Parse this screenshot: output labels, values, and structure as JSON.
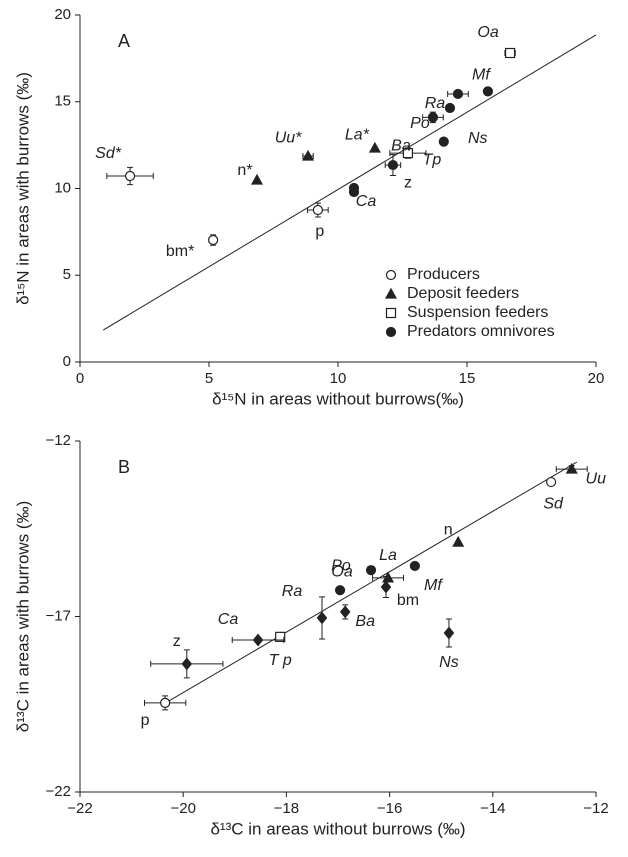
{
  "chart_data": [
    {
      "type": "scatter",
      "panel": "A",
      "xlabel": "δ¹⁵N in areas without burrows(‰)",
      "ylabel": "δ¹⁵N in areas with burrows (‰)",
      "xlim": [
        0,
        20
      ],
      "ylim": [
        0,
        20
      ],
      "xticks": [
        0,
        5,
        10,
        15,
        20
      ],
      "yticks": [
        0,
        5,
        10,
        15,
        20
      ],
      "legend": "lower right",
      "fit_line": {
        "x": [
          0.9,
          20
        ],
        "y": [
          1.84,
          18.85
        ]
      },
      "series": [
        {
          "name": "Producers",
          "marker": "open-circle",
          "labels": [
            "Sd*",
            "bm*",
            "p"
          ],
          "x": [
            1.94,
            5.16,
            9.22
          ],
          "values": [
            10.72,
            7.03,
            8.76
          ],
          "xerr": [
            0.9,
            0.15,
            0.4
          ],
          "yerr": [
            0.5,
            0.3,
            0.4
          ]
        },
        {
          "name": "Deposit feeders",
          "marker": "triangle",
          "labels": [
            "n*",
            "Uu*",
            "La*"
          ],
          "x": [
            6.86,
            8.84,
            11.43
          ],
          "values": [
            10.49,
            11.87,
            12.33
          ],
          "xerr": [
            null,
            0.2,
            null
          ],
          "yerr": [
            null,
            null,
            null
          ]
        },
        {
          "name": "Suspension feeders",
          "marker": "open-square",
          "labels": [
            "Tp",
            "Oa"
          ],
          "x": [
            12.71,
            16.67
          ],
          "values": [
            12.04,
            17.81
          ],
          "xerr": [
            0.7,
            0.2
          ],
          "yerr": [
            0.3,
            null
          ]
        },
        {
          "name": "Predators omnivores",
          "marker": "filled-circle",
          "labels": [
            "Ca",
            null,
            "z",
            "Ba",
            "Po",
            "Ra",
            "Mf",
            "Ns"
          ],
          "x": [
            10.62,
            10.62,
            12.13,
            13.68,
            14.34,
            14.65,
            15.81,
            14.1
          ],
          "values": [
            10.03,
            9.8,
            11.35,
            14.1,
            14.64,
            15.45,
            15.6,
            12.7
          ],
          "xerr": [
            null,
            null,
            0.3,
            0.4,
            null,
            0.4,
            null,
            null
          ],
          "yerr": [
            null,
            null,
            0.6,
            0.3,
            null,
            null,
            null,
            null
          ]
        }
      ]
    },
    {
      "type": "scatter",
      "panel": "B",
      "xlabel": "δ¹³C in areas without burrows (‰)",
      "ylabel": "δ¹³C in areas with burrows (‰)",
      "xlim": [
        -22,
        -12
      ],
      "ylim": [
        -22,
        -12
      ],
      "xticks": [
        {
          "value": -22,
          "label": "−22"
        },
        {
          "value": -20,
          "label": "−20"
        },
        {
          "value": -18,
          "label": "−18"
        },
        {
          "value": -16,
          "label": "−16"
        },
        {
          "value": -14,
          "label": "−14"
        },
        {
          "value": -12,
          "label": "−12"
        }
      ],
      "yticks": [
        {
          "value": -22,
          "label": "−22"
        },
        {
          "value": -17,
          "label": "−17"
        },
        {
          "value": -12,
          "label": "−12"
        }
      ],
      "fit_line": {
        "x": [
          -20.41,
          -12.37
        ],
        "y": [
          -19.52,
          -12.6
        ]
      },
      "series": [
        {
          "marker": "open-circle",
          "labels": [
            "p",
            "Sd"
          ],
          "x": [
            -20.35,
            -12.87
          ],
          "values": [
            -19.46,
            -13.17
          ],
          "xerr": [
            0.4,
            null
          ],
          "yerr": [
            0.2,
            null
          ]
        },
        {
          "marker": "triangle",
          "labels": [
            "Uu",
            "n",
            "La"
          ],
          "x": [
            -12.47,
            -14.67,
            -16.03
          ],
          "values": [
            -12.8,
            -14.88,
            -15.9
          ],
          "xerr": [
            0.3,
            null,
            0.3
          ],
          "yerr": [
            0.1,
            null,
            null
          ]
        },
        {
          "marker": "open-square",
          "labels": [
            "T p"
          ],
          "x": [
            -18.12
          ],
          "values": [
            -17.58
          ],
          "xerr": [
            null
          ],
          "yerr": [
            null
          ]
        },
        {
          "marker": "filled-circle",
          "labels": [
            "Oa",
            "Po",
            "Mf"
          ],
          "x": [
            -16.96,
            -16.36,
            -15.51
          ],
          "values": [
            -16.25,
            -15.68,
            -15.56
          ],
          "xerr": [
            null,
            null,
            null
          ],
          "yerr": [
            null,
            null,
            null
          ]
        },
        {
          "marker": "diamond",
          "labels": [
            "z",
            "Ca",
            "Ra",
            "Ba",
            "bm",
            "Ns"
          ],
          "x": [
            -19.93,
            -18.55,
            -17.31,
            -16.86,
            -16.07,
            -14.85
          ],
          "values": [
            -18.35,
            -17.67,
            -17.04,
            -16.87,
            -16.16,
            -17.47
          ],
          "xerr": [
            0.7,
            0.5,
            null,
            null,
            null,
            null
          ],
          "yerr": [
            0.4,
            null,
            0.6,
            0.2,
            0.3,
            0.4
          ]
        }
      ]
    }
  ]
}
